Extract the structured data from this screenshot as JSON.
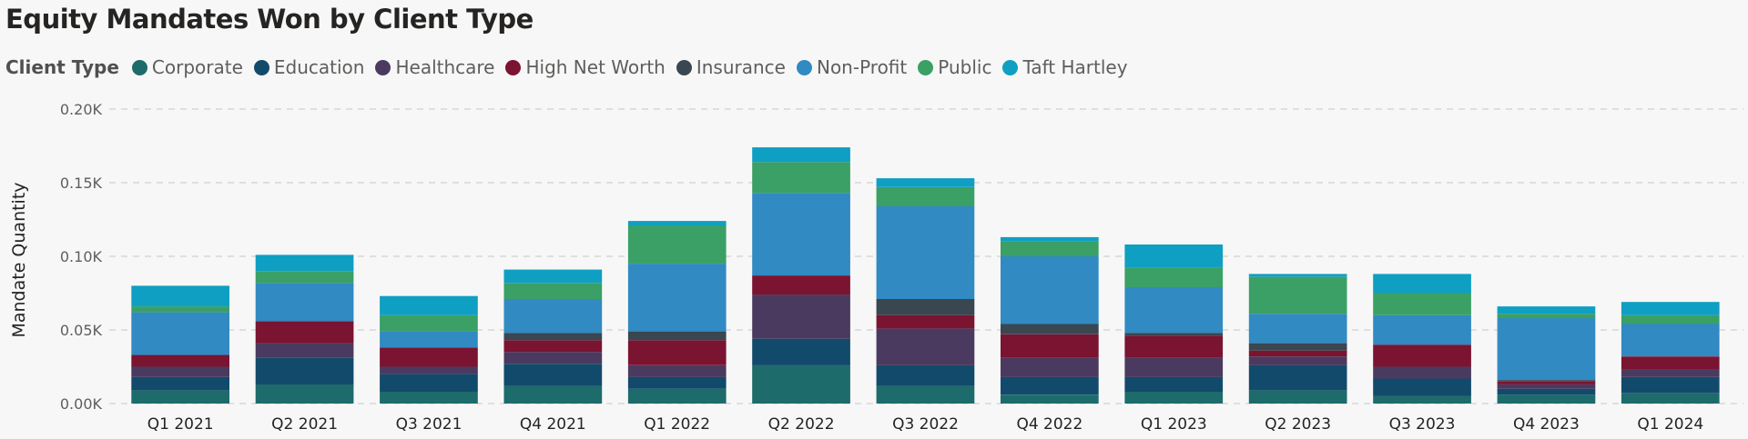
{
  "chart_data": {
    "type": "bar",
    "stacked": true,
    "title": "Equity Mandates Won by Client Type",
    "legend_title": "Client Type",
    "legend_position": "top-left",
    "xlabel": "",
    "ylabel": "Mandate Quantity",
    "ylim": [
      0,
      200
    ],
    "yticks": [
      0,
      50,
      100,
      150,
      200
    ],
    "ytick_labels": [
      "0.00K",
      "0.05K",
      "0.10K",
      "0.15K",
      "0.20K"
    ],
    "grid": true,
    "categories": [
      "Q1 2021",
      "Q2 2021",
      "Q3 2021",
      "Q4 2021",
      "Q1 2022",
      "Q2 2022",
      "Q3 2022",
      "Q4 2022",
      "Q1 2023",
      "Q2 2023",
      "Q3 2023",
      "Q4 2023",
      "Q1 2024"
    ],
    "series": [
      {
        "name": "Corporate",
        "color": "#1d6b6b",
        "values": [
          9,
          13,
          8,
          12,
          10,
          26,
          12,
          6,
          8,
          9,
          5,
          6,
          7
        ]
      },
      {
        "name": "Education",
        "color": "#124a6b",
        "values": [
          9,
          18,
          12,
          15,
          8,
          18,
          14,
          12,
          10,
          17,
          12,
          4,
          11
        ]
      },
      {
        "name": "Healthcare",
        "color": "#4b3a5f",
        "values": [
          7,
          10,
          5,
          8,
          8,
          30,
          25,
          13,
          13,
          6,
          8,
          3,
          5
        ]
      },
      {
        "name": "High Net Worth",
        "color": "#7a1431",
        "values": [
          8,
          15,
          13,
          8,
          17,
          13,
          9,
          16,
          15,
          4,
          15,
          2,
          9
        ]
      },
      {
        "name": "Insurance",
        "color": "#3a4650",
        "values": [
          0,
          0,
          0,
          5,
          6,
          0,
          11,
          7,
          2,
          5,
          0,
          1,
          0
        ]
      },
      {
        "name": "Non-Profit",
        "color": "#318ac2",
        "values": [
          29,
          26,
          11,
          23,
          46,
          56,
          63,
          46,
          31,
          20,
          20,
          42,
          22
        ]
      },
      {
        "name": "Public",
        "color": "#3aa066",
        "values": [
          4,
          8,
          11,
          11,
          26,
          21,
          13,
          10,
          13,
          25,
          15,
          3,
          6
        ]
      },
      {
        "name": "Taft Hartley",
        "color": "#0f9fc2",
        "values": [
          14,
          11,
          13,
          9,
          3,
          10,
          6,
          3,
          16,
          2,
          13,
          5,
          9
        ]
      }
    ]
  }
}
